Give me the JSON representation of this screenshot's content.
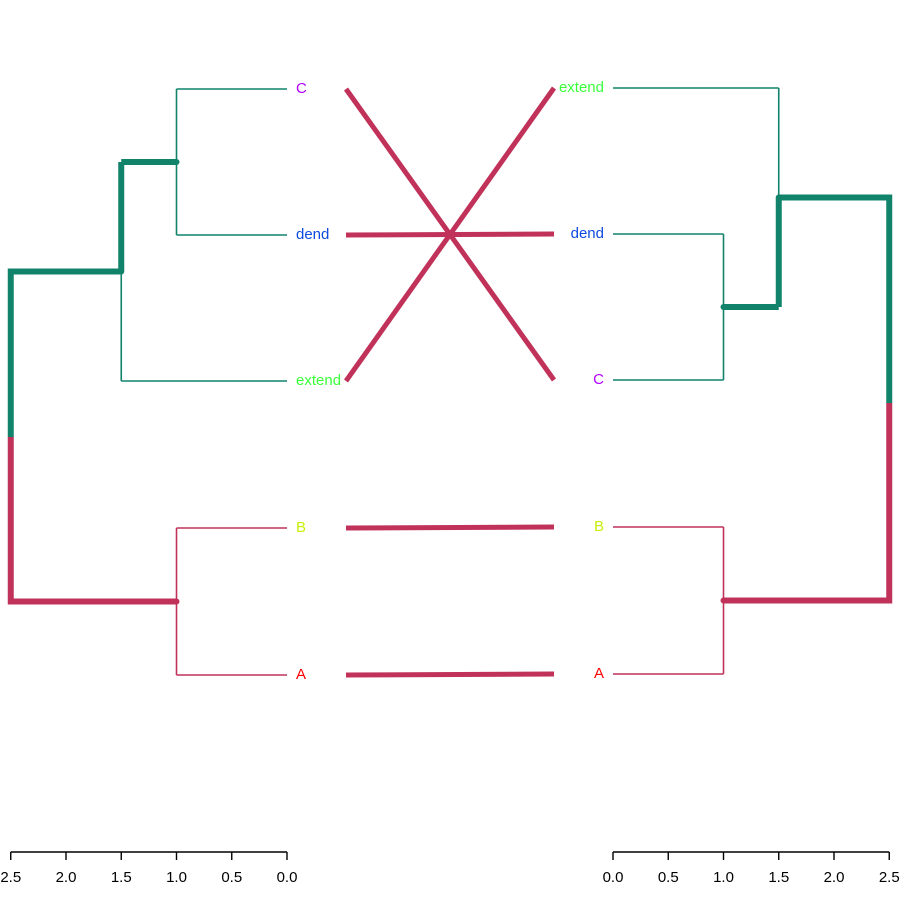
{
  "chart_data": {
    "type": "tanglegram",
    "height_range": [
      0,
      2.5
    ],
    "axis_ticks": [
      "2.5",
      "2.0",
      "1.5",
      "1.0",
      "0.5",
      "0.0"
    ],
    "axis_ticks_right": [
      "0.0",
      "0.5",
      "1.0",
      "1.5",
      "2.0",
      "2.5"
    ],
    "colors": {
      "green": "#11836b",
      "crimson": "#c1325a",
      "connector": "#c1325a",
      "axis": "#000000"
    },
    "left_tree": {
      "leaves": [
        {
          "label": "C",
          "color": "#b200ff"
        },
        {
          "label": "dend",
          "color": "#0b4be0"
        },
        {
          "label": "extend",
          "color": "#3bff3b"
        },
        {
          "label": "B",
          "color": "#c8f00a"
        },
        {
          "label": "A",
          "color": "#ff0000"
        }
      ],
      "merges": [
        {
          "height": 1.0,
          "children": [
            "C",
            "dend"
          ]
        },
        {
          "height": 1.5,
          "children": [
            "C+dend",
            "extend"
          ]
        },
        {
          "height": 1.0,
          "children": [
            "B",
            "A"
          ]
        },
        {
          "height": 2.5,
          "children": [
            "C+dend+extend",
            "B+A"
          ]
        }
      ]
    },
    "right_tree": {
      "leaves": [
        {
          "label": "extend",
          "color": "#3bff3b"
        },
        {
          "label": "dend",
          "color": "#0b4be0"
        },
        {
          "label": "C",
          "color": "#b200ff"
        },
        {
          "label": "B",
          "color": "#c8f00a"
        },
        {
          "label": "A",
          "color": "#ff0000"
        }
      ],
      "merges": [
        {
          "height": 1.0,
          "children": [
            "dend",
            "C"
          ]
        },
        {
          "height": 1.5,
          "children": [
            "extend",
            "dend+C"
          ]
        },
        {
          "height": 1.0,
          "children": [
            "B",
            "A"
          ]
        },
        {
          "height": 2.5,
          "children": [
            "extend+dend+C",
            "B+A"
          ]
        }
      ]
    },
    "connections": [
      [
        "C",
        "C"
      ],
      [
        "dend",
        "dend"
      ],
      [
        "extend",
        "extend"
      ],
      [
        "B",
        "B"
      ],
      [
        "A",
        "A"
      ]
    ]
  }
}
